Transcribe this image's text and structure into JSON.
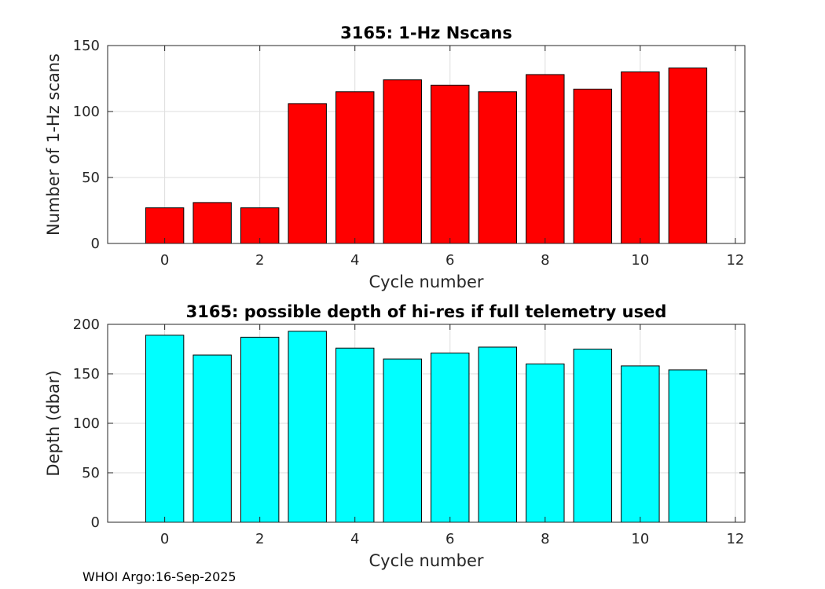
{
  "footer": {
    "text": "WHOI Argo:16-Sep-2025"
  },
  "colors": {
    "top_bar": "#ff0000",
    "bottom_bar": "#00ffff",
    "grid": "#dddddd",
    "axis": "#262626",
    "background": "#ffffff"
  },
  "chart_data": [
    {
      "type": "bar",
      "title": "3165: 1-Hz Nscans",
      "xlabel": "Cycle number",
      "ylabel": "Number of 1-Hz scans",
      "xlim": [
        -1.2,
        12.2
      ],
      "ylim": [
        0,
        150
      ],
      "xticks": [
        0,
        2,
        4,
        6,
        8,
        10,
        12
      ],
      "yticks": [
        0,
        50,
        100,
        150
      ],
      "xtick_labels": [
        "0",
        "2",
        "4",
        "6",
        "8",
        "10",
        "12"
      ],
      "ytick_labels": [
        "0",
        "50",
        "100",
        "150"
      ],
      "grid": true,
      "bar_color": "#ff0000",
      "bar_width": 0.8,
      "x": [
        0,
        1,
        2,
        3,
        4,
        5,
        6,
        7,
        8,
        9,
        10,
        11
      ],
      "values": [
        27,
        31,
        27,
        106,
        115,
        124,
        120,
        115,
        128,
        117,
        130,
        133
      ]
    },
    {
      "type": "bar",
      "title": "3165: possible depth of hi-res if full telemetry used",
      "xlabel": "Cycle number",
      "ylabel": "Depth (dbar)",
      "xlim": [
        -1.2,
        12.2
      ],
      "ylim": [
        0,
        200
      ],
      "xticks": [
        0,
        2,
        4,
        6,
        8,
        10,
        12
      ],
      "yticks": [
        0,
        50,
        100,
        150,
        200
      ],
      "xtick_labels": [
        "0",
        "2",
        "4",
        "6",
        "8",
        "10",
        "12"
      ],
      "ytick_labels": [
        "0",
        "50",
        "100",
        "150",
        "200"
      ],
      "grid": true,
      "bar_color": "#00ffff",
      "bar_width": 0.8,
      "x": [
        0,
        1,
        2,
        3,
        4,
        5,
        6,
        7,
        8,
        9,
        10,
        11
      ],
      "values": [
        189,
        169,
        187,
        193,
        176,
        165,
        171,
        177,
        160,
        175,
        158,
        154
      ]
    }
  ]
}
